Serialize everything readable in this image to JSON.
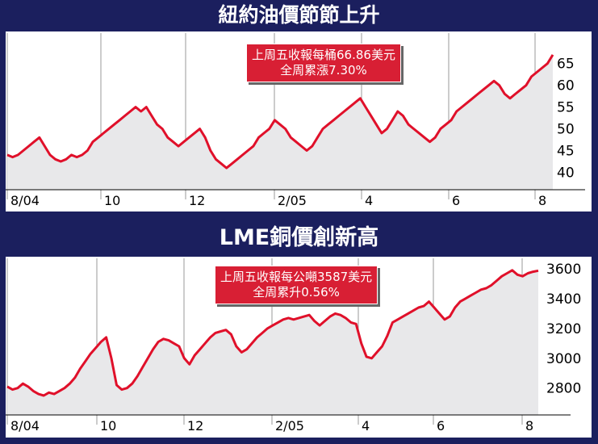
{
  "colors": {
    "frame": "#1b1f5e",
    "line": "#e0102a",
    "area": "#e8e8ea",
    "callout": "#d81f34",
    "grid": "#9a9a9a"
  },
  "chart_data": [
    {
      "type": "area",
      "title": "紐約油價節節上升",
      "annotation": [
        "上周五收報每桶66.86美元",
        "全周累漲7.30%"
      ],
      "x_tick_labels": [
        "8/04",
        "10",
        "12",
        "2/05",
        "4",
        "6",
        "8"
      ],
      "y_tick_labels": [
        "40",
        "45",
        "50",
        "55",
        "60",
        "65"
      ],
      "ylim": [
        36,
        72
      ],
      "grid": true,
      "series": [
        {
          "values": [
            44,
            43.5,
            44,
            45,
            46,
            47,
            48,
            46,
            44,
            43,
            42.5,
            43,
            44,
            43.5,
            44,
            45,
            47,
            48,
            49,
            50,
            51,
            52,
            53,
            54,
            55,
            54,
            55,
            53,
            51,
            50,
            48,
            47,
            46,
            47,
            48,
            49,
            50,
            48,
            45,
            43,
            42,
            41,
            42,
            43,
            44,
            45,
            46,
            48,
            49,
            50,
            52,
            51,
            50,
            48,
            47,
            46,
            45,
            46,
            48,
            50,
            51,
            52,
            53,
            54,
            55,
            56,
            57,
            55,
            53,
            51,
            49,
            50,
            52,
            54,
            53,
            51,
            50,
            49,
            48,
            47,
            48,
            50,
            51,
            52,
            54,
            55,
            56,
            57,
            58,
            59,
            60,
            61,
            60,
            58,
            57,
            58,
            59,
            60,
            62,
            63,
            64,
            65,
            67
          ]
        }
      ]
    },
    {
      "type": "area",
      "title": "LME銅價創新高",
      "annotation": [
        "上周五收報每公噸3587美元",
        "全周累升0.56%"
      ],
      "x_tick_labels": [
        "8/04",
        "10",
        "12",
        "2/05",
        "4",
        "6",
        "8"
      ],
      "y_tick_labels": [
        "2800",
        "3000",
        "3200",
        "3400",
        "3600"
      ],
      "ylim": [
        2620,
        3670
      ],
      "grid": true,
      "series": [
        {
          "values": [
            2810,
            2790,
            2800,
            2830,
            2810,
            2780,
            2760,
            2750,
            2770,
            2760,
            2780,
            2800,
            2830,
            2870,
            2930,
            2980,
            3030,
            3070,
            3110,
            3140,
            3000,
            2820,
            2790,
            2800,
            2830,
            2880,
            2940,
            3000,
            3060,
            3110,
            3130,
            3120,
            3100,
            3080,
            3000,
            2960,
            3020,
            3060,
            3100,
            3140,
            3170,
            3180,
            3190,
            3160,
            3080,
            3040,
            3060,
            3100,
            3140,
            3170,
            3200,
            3220,
            3240,
            3260,
            3270,
            3260,
            3270,
            3280,
            3290,
            3250,
            3220,
            3250,
            3280,
            3300,
            3290,
            3270,
            3240,
            3230,
            3100,
            3010,
            3000,
            3040,
            3080,
            3150,
            3240,
            3260,
            3280,
            3300,
            3320,
            3340,
            3350,
            3380,
            3340,
            3300,
            3260,
            3280,
            3340,
            3380,
            3400,
            3420,
            3440,
            3460,
            3470,
            3490,
            3520,
            3550,
            3570,
            3590,
            3560,
            3550,
            3570,
            3580,
            3587
          ]
        }
      ]
    }
  ]
}
